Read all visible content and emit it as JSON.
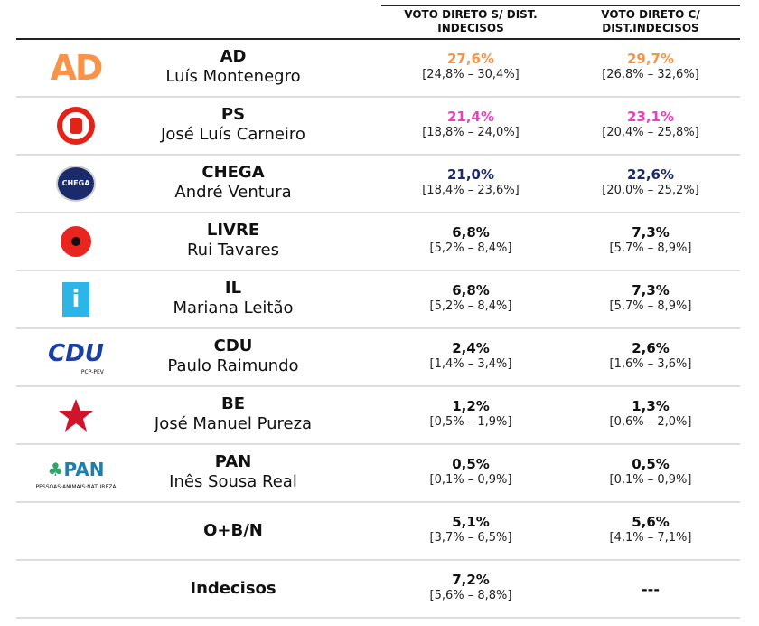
{
  "header": {
    "col1": "VOTO DIRETO S/ DIST. INDECISOS",
    "col2": "VOTO DIRETO C/ DIST.INDECISOS"
  },
  "colors": {
    "AD": "#F7944A",
    "PS": "#F03CC0",
    "CHEGA": "#1B2A6B",
    "default": "#111111"
  },
  "rows": [
    {
      "party": "AD",
      "leader": "Luís Montenegro",
      "logo": "ad-logo",
      "v1": "27,6%",
      "ci1": "[24,8% – 30,4%]",
      "v2": "29,7%",
      "ci2": "[26,8% – 32,6%]"
    },
    {
      "party": "PS",
      "leader": "José Luís Carneiro",
      "logo": "ps-logo",
      "v1": "21,4%",
      "ci1": "[18,8% – 24,0%]",
      "v2": "23,1%",
      "ci2": "[20,4% – 25,8%]"
    },
    {
      "party": "CHEGA",
      "leader": "André Ventura",
      "logo": "chega-logo",
      "logo_text": "CHEGA",
      "v1": "21,0%",
      "ci1": "[18,4% – 23,6%]",
      "v2": "22,6%",
      "ci2": "[20,0% – 25,2%]"
    },
    {
      "party": "LIVRE",
      "leader": "Rui Tavares",
      "logo": "livre-poppy-logo",
      "v1": "6,8%",
      "ci1": "[5,2% – 8,4%]",
      "v2": "7,3%",
      "ci2": "[5,7% – 8,9%]"
    },
    {
      "party": "IL",
      "leader": "Mariana Leitão",
      "logo": "il-logo",
      "v1": "6,8%",
      "ci1": "[5,2% – 8,4%]",
      "v2": "7,3%",
      "ci2": "[5,7% – 8,9%]"
    },
    {
      "party": "CDU",
      "leader": "Paulo Raimundo",
      "logo": "cdu-logo",
      "logo_text": "CDU",
      "logo_sub": "PCP-PEV",
      "v1": "2,4%",
      "ci1": "[1,4% – 3,4%]",
      "v2": "2,6%",
      "ci2": "[1,6% – 3,6%]"
    },
    {
      "party": "BE",
      "leader": "José Manuel Pureza",
      "logo": "be-star-logo",
      "v1": "1,2%",
      "ci1": "[0,5% – 1,9%]",
      "v2": "1,3%",
      "ci2": "[0,6% – 2,0%]"
    },
    {
      "party": "PAN",
      "leader": "Inês Sousa Real",
      "logo": "pan-logo",
      "logo_text": "PAN",
      "logo_sub": "PESSOAS·ANIMAIS·NATUREZA",
      "v1": "0,5%",
      "ci1": "[0,1% – 0,9%]",
      "v2": "0,5%",
      "ci2": "[0,1% – 0,9%]"
    },
    {
      "party": "O+B/N",
      "v1": "5,1%",
      "ci1": "[3,7% – 6,5%]",
      "v2": "5,6%",
      "ci2": "[4,1% – 7,1%]"
    },
    {
      "party": "Indecisos",
      "v1": "7,2%",
      "ci1": "[5,6% – 8,8%]",
      "v2": "---"
    }
  ]
}
